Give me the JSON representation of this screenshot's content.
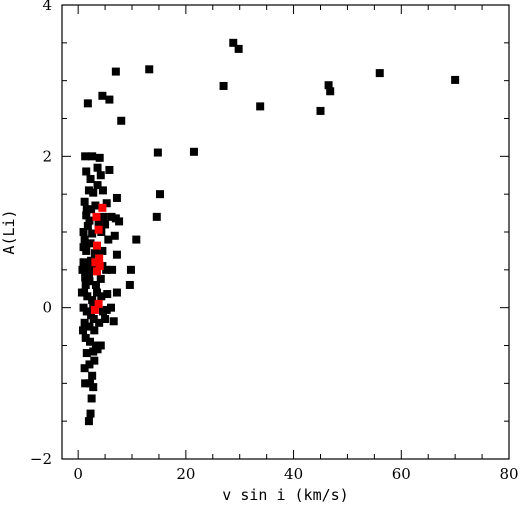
{
  "chart_data": {
    "type": "scatter",
    "title": "",
    "xlabel": "v sin i (km/s)",
    "ylabel": "A(Li)",
    "xlim": [
      -3,
      80
    ],
    "ylim": [
      -2,
      4
    ],
    "x_ticks": [
      0,
      20,
      40,
      60,
      80
    ],
    "y_ticks": [
      -2,
      0,
      2,
      4
    ],
    "x_tick_labels": [
      "0",
      "20",
      "40",
      "60",
      "80"
    ],
    "y_tick_labels": [
      "−2",
      "0",
      "2",
      "4"
    ],
    "grid": false,
    "legend": "none",
    "series": [
      {
        "color": "#000000",
        "marker": "square",
        "points": [
          [
            28.8,
            3.5
          ],
          [
            29.8,
            3.42
          ],
          [
            13.2,
            3.15
          ],
          [
            7.0,
            3.12
          ],
          [
            56.0,
            3.1
          ],
          [
            70.0,
            3.01
          ],
          [
            27.0,
            2.93
          ],
          [
            46.5,
            2.94
          ],
          [
            46.8,
            2.86
          ],
          [
            4.5,
            2.8
          ],
          [
            5.8,
            2.75
          ],
          [
            1.8,
            2.7
          ],
          [
            33.8,
            2.66
          ],
          [
            45.0,
            2.6
          ],
          [
            8.0,
            2.47
          ],
          [
            14.8,
            2.05
          ],
          [
            21.5,
            2.06
          ],
          [
            1.3,
            2.0
          ],
          [
            2.6,
            2.0
          ],
          [
            4.0,
            1.98
          ],
          [
            3.6,
            1.85
          ],
          [
            1.5,
            1.8
          ],
          [
            2.3,
            1.7
          ],
          [
            4.2,
            1.75
          ],
          [
            5.8,
            1.82
          ],
          [
            7.2,
            1.45
          ],
          [
            15.2,
            1.5
          ],
          [
            2.0,
            1.55
          ],
          [
            2.8,
            1.52
          ],
          [
            3.6,
            1.62
          ],
          [
            4.6,
            1.55
          ],
          [
            1.2,
            1.4
          ],
          [
            2.4,
            1.3
          ],
          [
            3.2,
            1.35
          ],
          [
            5.3,
            1.38
          ],
          [
            1.5,
            1.22
          ],
          [
            2.1,
            1.15
          ],
          [
            3.8,
            1.1
          ],
          [
            4.7,
            1.2
          ],
          [
            6.2,
            1.2
          ],
          [
            7.0,
            1.18
          ],
          [
            7.6,
            1.14
          ],
          [
            14.6,
            1.2
          ],
          [
            1.0,
            1.0
          ],
          [
            1.8,
            1.08
          ],
          [
            2.6,
            0.98
          ],
          [
            4.3,
            1.0
          ],
          [
            5.0,
            1.1
          ],
          [
            1.2,
            0.9
          ],
          [
            1.5,
            0.75
          ],
          [
            2.3,
            0.85
          ],
          [
            3.1,
            0.72
          ],
          [
            4.5,
            0.75
          ],
          [
            5.6,
            0.9
          ],
          [
            6.8,
            0.95
          ],
          [
            10.8,
            0.9
          ],
          [
            1.0,
            0.6
          ],
          [
            1.7,
            0.55
          ],
          [
            2.4,
            0.62
          ],
          [
            3.1,
            0.55
          ],
          [
            4.5,
            0.55
          ],
          [
            5.2,
            0.5
          ],
          [
            6.3,
            0.5
          ],
          [
            7.2,
            0.7
          ],
          [
            9.8,
            0.5
          ],
          [
            1.3,
            0.4
          ],
          [
            2.1,
            0.35
          ],
          [
            3.3,
            0.3
          ],
          [
            4.2,
            0.38
          ],
          [
            9.6,
            0.3
          ],
          [
            1.1,
            0.2
          ],
          [
            1.7,
            0.15
          ],
          [
            2.6,
            0.1
          ],
          [
            3.5,
            0.2
          ],
          [
            4.3,
            0.15
          ],
          [
            5.4,
            0.18
          ],
          [
            6.1,
            0.0
          ],
          [
            7.2,
            0.2
          ],
          [
            1.0,
            0.0
          ],
          [
            1.6,
            -0.05
          ],
          [
            2.4,
            -0.1
          ],
          [
            4.6,
            -0.05
          ],
          [
            5.3,
            -0.03
          ],
          [
            1.2,
            -0.2
          ],
          [
            2.1,
            -0.25
          ],
          [
            3.0,
            -0.3
          ],
          [
            3.9,
            -0.2
          ],
          [
            5.0,
            -0.15
          ],
          [
            6.6,
            -0.18
          ],
          [
            1.4,
            -0.4
          ],
          [
            2.2,
            -0.45
          ],
          [
            3.3,
            -0.5
          ],
          [
            4.2,
            -0.5
          ],
          [
            1.6,
            -0.6
          ],
          [
            2.8,
            -0.58
          ],
          [
            3.6,
            -0.55
          ],
          [
            1.2,
            -0.8
          ],
          [
            2.1,
            -0.75
          ],
          [
            3.0,
            -0.7
          ],
          [
            2.6,
            -0.9
          ],
          [
            1.3,
            -1.0
          ],
          [
            2.2,
            -1.0
          ],
          [
            2.8,
            -1.05
          ],
          [
            2.5,
            -1.2
          ],
          [
            2.3,
            -1.4
          ],
          [
            2.0,
            -1.5
          ],
          [
            0.8,
            0.5
          ],
          [
            0.9,
            -0.3
          ],
          [
            1.0,
            0.8
          ],
          [
            1.4,
            0.3
          ],
          [
            2.0,
            0.45
          ],
          [
            2.8,
            0.0
          ],
          [
            3.6,
            0.05
          ],
          [
            0.7,
            0.2
          ],
          [
            1.6,
            1.3
          ],
          [
            2.9,
            -0.15
          ]
        ]
      },
      {
        "color": "#ff0000",
        "marker": "square",
        "points": [
          [
            4.5,
            1.32
          ],
          [
            3.4,
            1.2
          ],
          [
            3.8,
            1.03
          ],
          [
            3.5,
            0.82
          ],
          [
            3.9,
            0.65
          ],
          [
            3.2,
            0.6
          ],
          [
            3.5,
            0.48
          ],
          [
            4.0,
            0.55
          ],
          [
            3.8,
            0.05
          ],
          [
            3.1,
            -0.03
          ]
        ]
      }
    ]
  }
}
